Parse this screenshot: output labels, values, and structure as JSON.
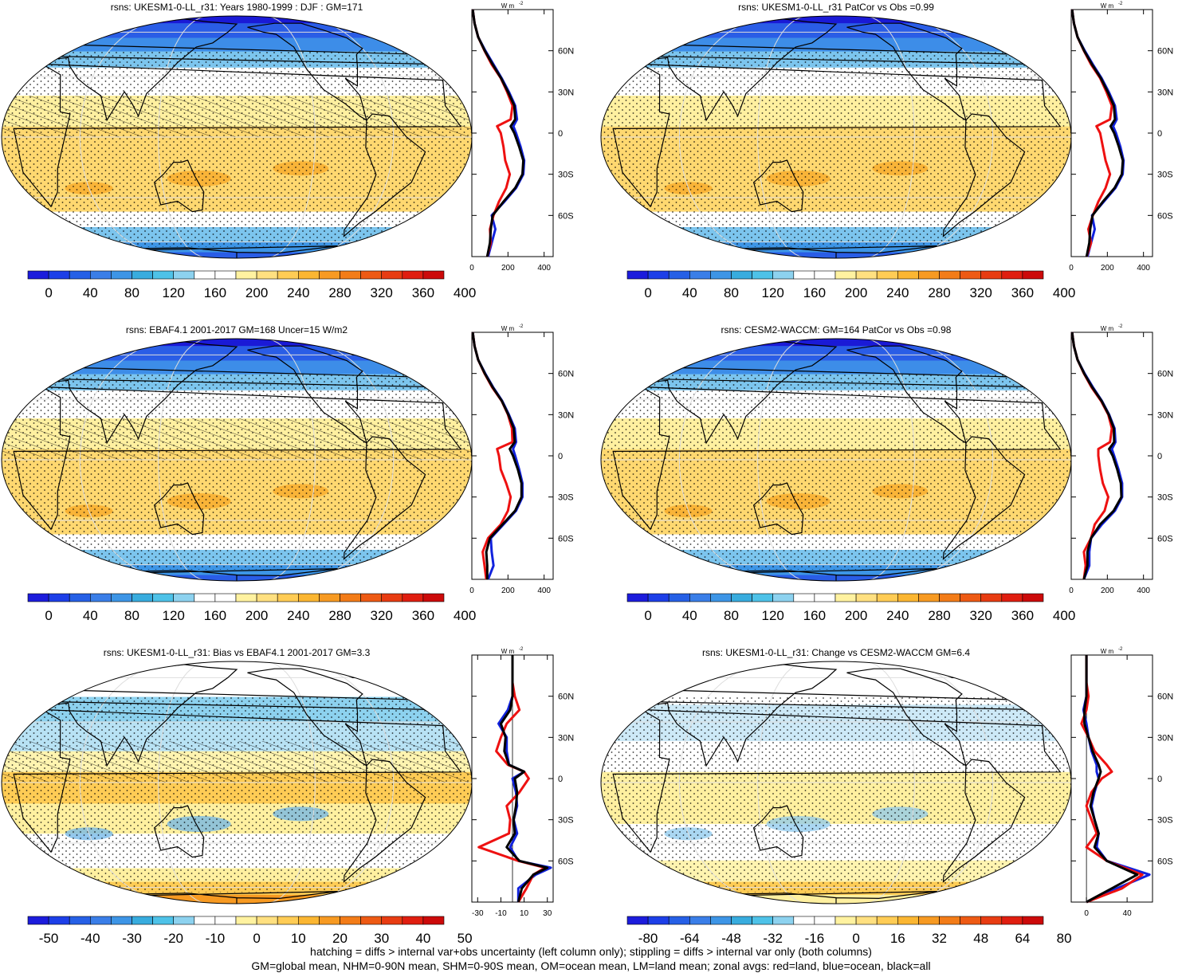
{
  "footnote": {
    "line1": "hatching = diffs > internal var+obs uncertainty (left column only); stippling = diffs > internal var only (both columns)",
    "line2": "GM=global mean, NHM=0-90N mean, SHM=0-90S mean, OM=ocean mean, LM=land mean; zonal avgs: red=land, blue=ocean, black=all"
  },
  "profile_unit": "W m",
  "profile_unit_exp": "-2",
  "lat_labels": [
    "60N",
    "30N",
    "0",
    "30S",
    "60S"
  ],
  "colors": {
    "land": "#ee1111",
    "ocean": "#1122dd",
    "all": "#000000"
  },
  "chart_data": [
    {
      "type": "heatmap",
      "title": "rsns: UKESM1-0-LL_r31: Years 1980-1999 : DJF : GM=171",
      "scale": "abs",
      "colorbar_ticks": [
        "0",
        "40",
        "80",
        "120",
        "160",
        "200",
        "240",
        "280",
        "320",
        "360",
        "400"
      ],
      "profile": {
        "xlim": [
          0,
          450
        ],
        "xticks": [
          "0",
          "200",
          "400"
        ],
        "lat": [
          90,
          80,
          70,
          60,
          50,
          40,
          30,
          20,
          10,
          5,
          0,
          -10,
          -20,
          -30,
          -40,
          -50,
          -60,
          -70,
          -80,
          -90
        ],
        "land": [
          5,
          15,
          35,
          70,
          110,
          160,
          195,
          225,
          215,
          140,
          160,
          175,
          185,
          210,
          190,
          150,
          120,
          100,
          105,
          85
        ],
        "ocean": [
          5,
          15,
          35,
          75,
          120,
          165,
          205,
          240,
          250,
          230,
          245,
          270,
          290,
          285,
          245,
          180,
          110,
          130,
          110,
          90
        ],
        "all": [
          5,
          15,
          35,
          72,
          115,
          162,
          200,
          235,
          240,
          215,
          235,
          262,
          285,
          280,
          240,
          175,
          115,
          105,
          100,
          85
        ]
      }
    },
    {
      "type": "heatmap",
      "title": "rsns: UKESM1-0-LL_r31 PatCor vs Obs =0.99",
      "scale": "abs",
      "colorbar_ticks": [
        "0",
        "40",
        "80",
        "120",
        "160",
        "200",
        "240",
        "280",
        "320",
        "360",
        "400"
      ],
      "profile": {
        "xlim": [
          0,
          450
        ],
        "xticks": [
          "0",
          "200",
          "400"
        ],
        "lat": [
          90,
          80,
          70,
          60,
          50,
          40,
          30,
          20,
          10,
          5,
          0,
          -10,
          -20,
          -30,
          -40,
          -50,
          -60,
          -70,
          -80,
          -90
        ],
        "land": [
          5,
          15,
          35,
          70,
          110,
          160,
          195,
          225,
          215,
          140,
          160,
          175,
          190,
          215,
          190,
          150,
          120,
          95,
          110,
          85
        ],
        "ocean": [
          5,
          15,
          35,
          75,
          120,
          168,
          208,
          242,
          252,
          232,
          248,
          272,
          290,
          285,
          245,
          180,
          115,
          130,
          110,
          90
        ],
        "all": [
          5,
          15,
          35,
          72,
          115,
          164,
          202,
          236,
          242,
          218,
          238,
          264,
          286,
          280,
          240,
          175,
          118,
          105,
          100,
          85
        ]
      }
    },
    {
      "type": "heatmap",
      "title": "rsns: EBAF4.1 2001-2017 GM=168 Uncer=15 W/m2",
      "scale": "abs",
      "colorbar_ticks": [
        "0",
        "40",
        "80",
        "120",
        "160",
        "200",
        "240",
        "280",
        "320",
        "360",
        "400"
      ],
      "profile": {
        "xlim": [
          0,
          450
        ],
        "xticks": [
          "0",
          "200",
          "400"
        ],
        "lat": [
          90,
          80,
          70,
          60,
          50,
          40,
          30,
          20,
          10,
          5,
          0,
          -10,
          -20,
          -30,
          -40,
          -50,
          -60,
          -70,
          -80,
          -90
        ],
        "land": [
          5,
          15,
          35,
          70,
          112,
          165,
          200,
          222,
          225,
          140,
          150,
          160,
          190,
          215,
          200,
          160,
          90,
          60,
          70,
          80
        ],
        "ocean": [
          5,
          15,
          35,
          74,
          118,
          168,
          205,
          238,
          245,
          228,
          240,
          262,
          280,
          280,
          245,
          175,
          105,
          110,
          120,
          90
        ],
        "all": [
          5,
          15,
          35,
          72,
          115,
          166,
          202,
          232,
          238,
          210,
          228,
          255,
          275,
          275,
          240,
          170,
          100,
          80,
          85,
          85
        ]
      }
    },
    {
      "type": "heatmap",
      "title": "rsns: CESM2-WACCM: GM=164 PatCor vs Obs =0.98",
      "scale": "abs",
      "colorbar_ticks": [
        "0",
        "40",
        "80",
        "120",
        "160",
        "200",
        "240",
        "280",
        "320",
        "360",
        "400"
      ],
      "profile": {
        "xlim": [
          0,
          450
        ],
        "xticks": [
          "0",
          "200",
          "400"
        ],
        "lat": [
          90,
          80,
          70,
          60,
          50,
          40,
          30,
          20,
          10,
          5,
          0,
          -10,
          -20,
          -30,
          -40,
          -50,
          -60,
          -70,
          -80,
          -90
        ],
        "land": [
          5,
          15,
          35,
          70,
          112,
          165,
          205,
          225,
          215,
          150,
          150,
          160,
          175,
          205,
          185,
          130,
          110,
          70,
          80,
          70
        ],
        "ocean": [
          5,
          15,
          35,
          74,
          120,
          170,
          210,
          240,
          245,
          225,
          238,
          262,
          282,
          282,
          242,
          170,
          110,
          100,
          100,
          70
        ],
        "all": [
          5,
          15,
          35,
          72,
          116,
          168,
          208,
          236,
          238,
          210,
          230,
          255,
          275,
          278,
          235,
          160,
          110,
          90,
          90,
          70
        ]
      }
    },
    {
      "type": "heatmap",
      "title": "rsns: UKESM1-0-LL_r31: Bias vs EBAF4.1 2001-2017 GM=3.3",
      "scale": "bias",
      "colorbar_ticks": [
        "-50",
        "-40",
        "-30",
        "-20",
        "-10",
        "0",
        "10",
        "20",
        "30",
        "40",
        "50"
      ],
      "profile": {
        "xlim": [
          -35,
          35
        ],
        "xticks": [
          "-30",
          "-10",
          "10",
          "30"
        ],
        "lat": [
          90,
          80,
          70,
          60,
          50,
          40,
          30,
          20,
          10,
          5,
          0,
          -10,
          -20,
          -30,
          -40,
          -50,
          -60,
          -65,
          -70,
          -80,
          -90
        ],
        "land": [
          0,
          0,
          0,
          2,
          6,
          -5,
          -10,
          -14,
          -4,
          10,
          14,
          6,
          -5,
          -2,
          -3,
          -29,
          5,
          28,
          18,
          12,
          5
        ],
        "ocean": [
          0,
          0,
          0,
          0,
          -4,
          -12,
          -5,
          -5,
          -3,
          10,
          0,
          3,
          4,
          1,
          4,
          -2,
          5,
          33,
          20,
          5,
          5
        ],
        "all": [
          0,
          0,
          0,
          0,
          -2,
          -10,
          -6,
          -7,
          -3,
          10,
          2,
          4,
          3,
          1,
          2,
          -5,
          6,
          30,
          18,
          8,
          5
        ]
      }
    },
    {
      "type": "heatmap",
      "title": "rsns: UKESM1-0-LL_r31: Change vs CESM2-WACCM GM=6.4",
      "scale": "change",
      "colorbar_ticks": [
        "-80",
        "-64",
        "-48",
        "-32",
        "-16",
        "0",
        "16",
        "32",
        "48",
        "64",
        "80"
      ],
      "profile": {
        "xlim": [
          -15,
          65
        ],
        "xticks": [
          "0",
          "40"
        ],
        "lat": [
          90,
          80,
          70,
          60,
          50,
          40,
          30,
          20,
          10,
          5,
          0,
          -10,
          -20,
          -30,
          -40,
          -50,
          -60,
          -70,
          -80,
          -90
        ],
        "land": [
          0,
          0,
          0,
          2,
          0,
          -5,
          2,
          8,
          20,
          25,
          15,
          5,
          0,
          5,
          10,
          0,
          20,
          55,
          35,
          0
        ],
        "ocean": [
          0,
          0,
          0,
          0,
          -3,
          0,
          2,
          5,
          10,
          10,
          12,
          8,
          5,
          8,
          12,
          10,
          20,
          62,
          30,
          0
        ],
        "all": [
          0,
          0,
          0,
          0,
          -2,
          -2,
          2,
          6,
          12,
          14,
          12,
          7,
          4,
          8,
          12,
          8,
          20,
          50,
          25,
          0
        ]
      }
    }
  ]
}
